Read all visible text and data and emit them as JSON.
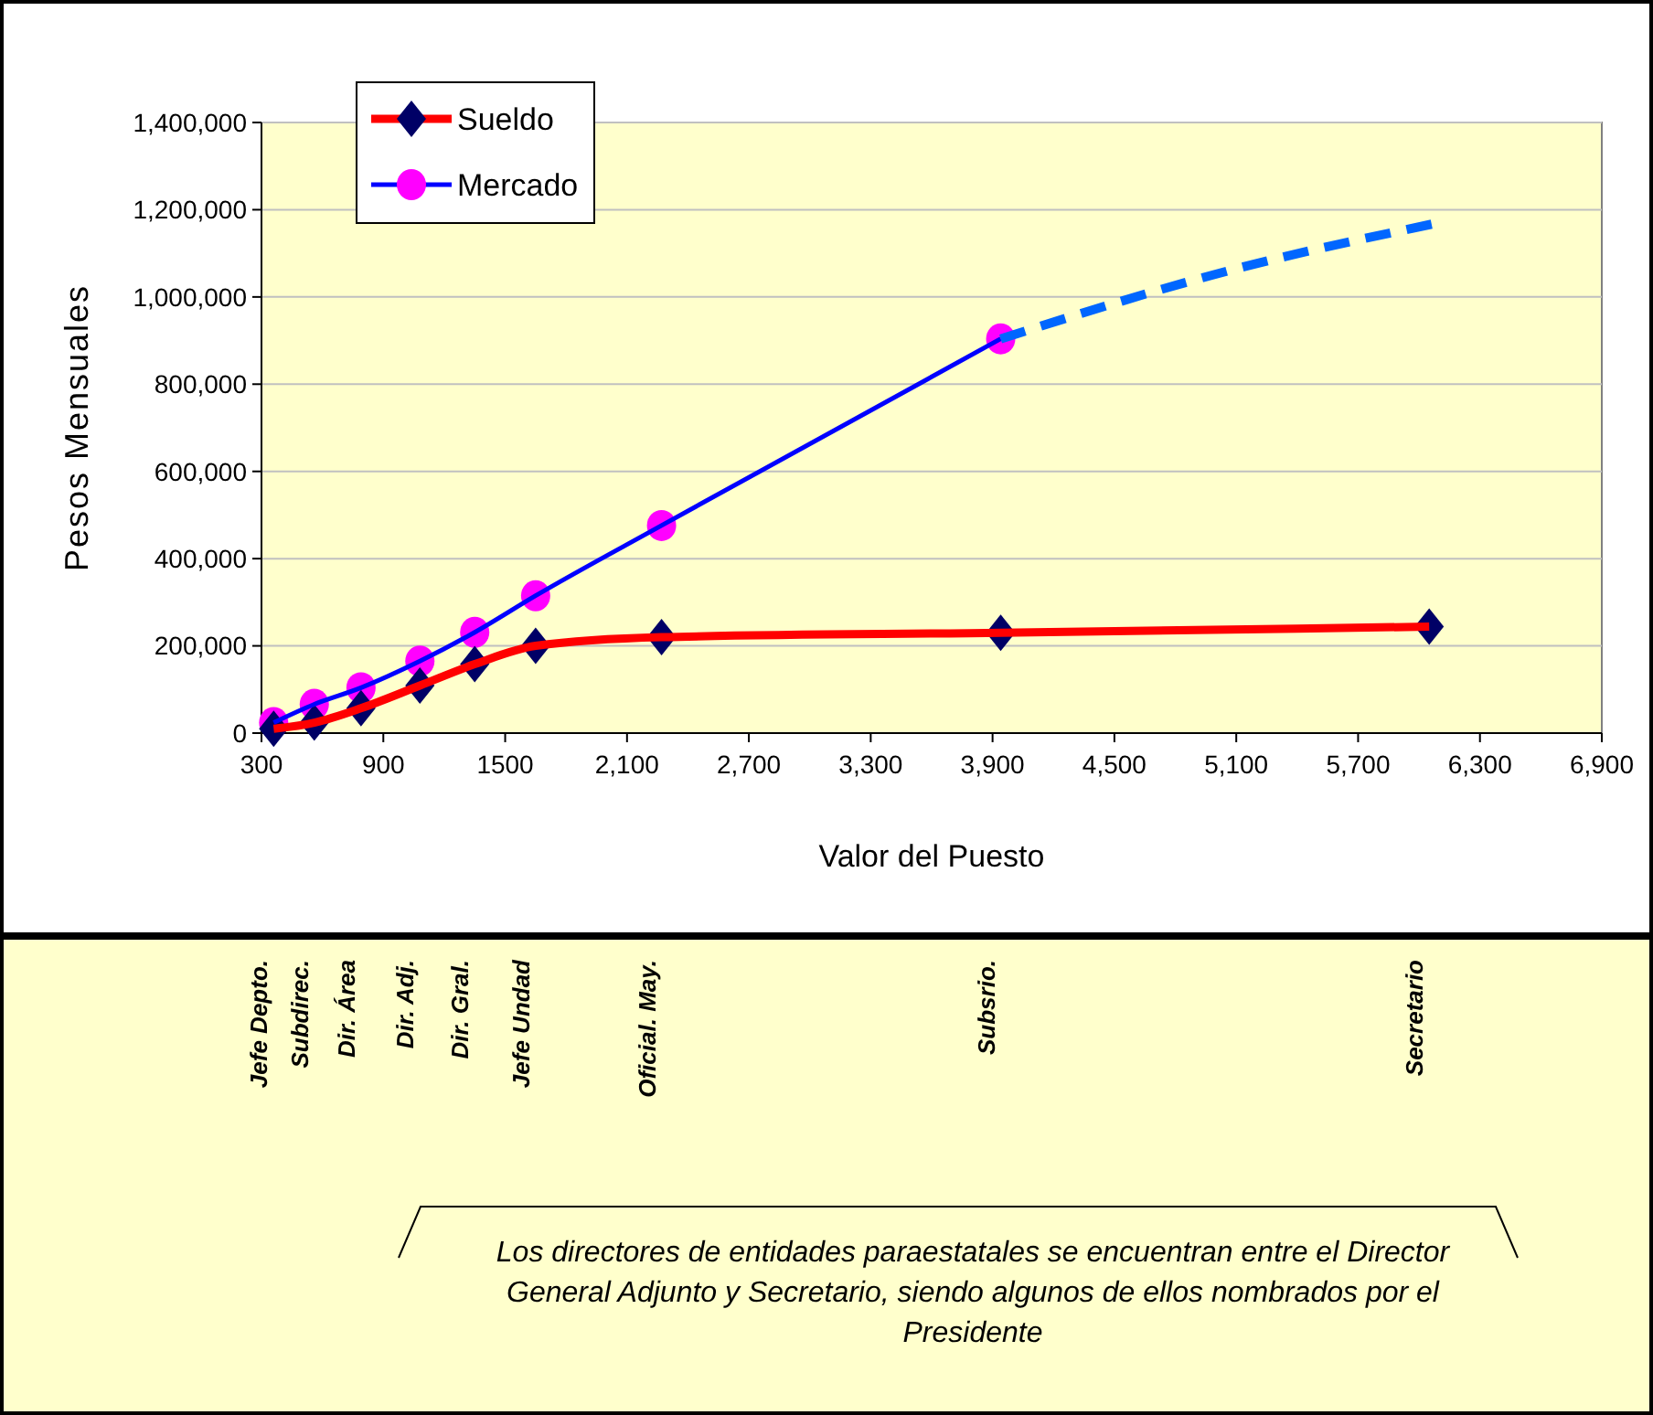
{
  "chart_data": {
    "type": "line",
    "xlabel": "Valor del Puesto",
    "ylabel": "Pesos Mensuales",
    "xlim": [
      300,
      6900
    ],
    "xticks": [
      300,
      900,
      1500,
      {
        "value": 2100,
        "label": "2,100"
      },
      {
        "value": 2700,
        "label": "2,700"
      },
      {
        "value": 3300,
        "label": "3,300"
      },
      {
        "value": 3900,
        "label": "3,900"
      },
      {
        "value": 4500,
        "label": "4,500"
      },
      {
        "value": 5100,
        "label": "5,100"
      },
      {
        "value": 5700,
        "label": "5,700"
      },
      {
        "value": 6300,
        "label": "6,300"
      },
      {
        "value": 6900,
        "label": "6,900"
      }
    ],
    "ylim": [
      0,
      1400000
    ],
    "yticks": [
      0,
      {
        "value": 200000,
        "label": "200,000"
      },
      {
        "value": 400000,
        "label": "400,000"
      },
      {
        "value": 600000,
        "label": "600,000"
      },
      {
        "value": 800000,
        "label": "800,000"
      },
      {
        "value": 1000000,
        "label": "1,000,000"
      },
      {
        "value": 1200000,
        "label": "1,200,000"
      },
      {
        "value": 1400000,
        "label": "1,400,000"
      }
    ],
    "grid": "y",
    "legend": "top left",
    "series": [
      {
        "name": "Sueldo",
        "color": "#ff0000",
        "marker": "diamond",
        "line_style": "solid",
        "x": [
          360,
          560,
          790,
          1080,
          1350,
          1650,
          2270,
          3940,
          6050
        ],
        "values": [
          10000,
          24000,
          57000,
          109000,
          158000,
          200000,
          220000,
          230000,
          244000
        ]
      },
      {
        "name": "Mercado",
        "color": "#0000ff",
        "marker": "circle",
        "line_style": "solid",
        "x": [
          360,
          560,
          790,
          1080,
          1350,
          1650,
          2270,
          3940
        ],
        "values": [
          24000,
          66000,
          104000,
          165000,
          231000,
          315000,
          476000,
          904000
        ]
      },
      {
        "color": "#0066ff",
        "marker": "none",
        "line_style": "dashed",
        "x": [
          3940,
          5086,
          6094
        ],
        "values": [
          904000,
          1063000,
          1170000
        ]
      }
    ],
    "annotations": [
      "Jefe Depto.",
      "Subdirec.",
      "Dir. Área",
      "Dir. Adj.",
      "Dir. Gral.",
      "Jefe Undad",
      "Oficial. May.",
      "Subsrio.",
      "Secretario",
      "Los directores de entidades paraestatales se encuentran entre el Director General Adjunto y Secretario, siendo algunos de ellos nombrados por el Presidente"
    ]
  }
}
